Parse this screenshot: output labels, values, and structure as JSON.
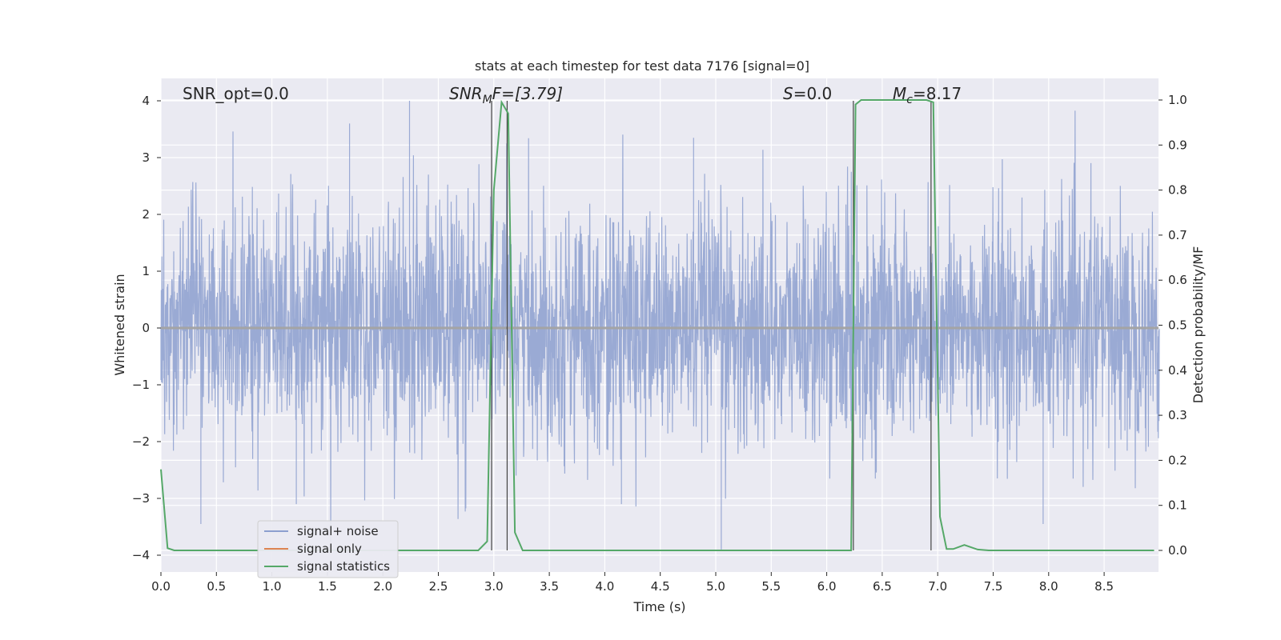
{
  "chart_data": {
    "type": "line",
    "title": "stats at each timestep for test data 7176 [signal=0]",
    "xlabel": "Time (s)",
    "ylabel": "Whitened strain",
    "y2label": "Detection probability/MF",
    "xlim": [
      0,
      9
    ],
    "ylim": [
      -4.25,
      4.4
    ],
    "y2lim": [
      -0.048,
      1.048
    ],
    "xticks": [
      "0.0",
      "0.5",
      "1.0",
      "1.5",
      "2.0",
      "2.5",
      "3.0",
      "3.5",
      "4.0",
      "4.5",
      "5.0",
      "5.5",
      "6.0",
      "6.5",
      "7.0",
      "7.5",
      "8.0",
      "8.5"
    ],
    "yticks": [
      "−4",
      "−3",
      "−2",
      "−1",
      "0",
      "1",
      "2",
      "3",
      "4"
    ],
    "y2ticks": [
      "0.0",
      "0.1",
      "0.2",
      "0.3",
      "0.4",
      "0.5",
      "0.6",
      "0.7",
      "0.8",
      "0.9",
      "1.0"
    ],
    "grid": true,
    "legend": {
      "position": "lower-left",
      "entries": [
        {
          "label": "signal+ noise",
          "color": "#8c9fcf"
        },
        {
          "label": "signal only",
          "color": "#dd8452"
        },
        {
          "label": "signal statistics",
          "color": "#55a868"
        }
      ]
    },
    "annotations": {
      "snr_opt": "SNR_opt=0.0",
      "snr_mf_main": "SNR",
      "snr_mf_sub": "M",
      "snr_mf_rest": "F=[3.79]",
      "s_italic": "S",
      "s_rest": "=0.0",
      "mc_main": "M",
      "mc_sub": "c",
      "mc_rest": "=8.17"
    },
    "series": [
      {
        "name": "signal+ noise",
        "color": "#8c9fcf",
        "description_range": [
          -3.9,
          4.0
        ],
        "spikes": [
          {
            "x": 2.24,
            "y": 4.0
          },
          {
            "x": 1.7,
            "y": 3.6
          },
          {
            "x": 4.8,
            "y": 3.35
          },
          {
            "x": 5.05,
            "y": -3.9
          },
          {
            "x": 7.95,
            "y": -3.45
          },
          {
            "x": 0.36,
            "y": -3.45
          },
          {
            "x": 4.15,
            "y": -3.1
          },
          {
            "x": 1.22,
            "y": -3.1
          }
        ]
      },
      {
        "name": "signal only",
        "color": "#dd8452",
        "x": [
          0,
          9
        ],
        "y": [
          0,
          0
        ]
      },
      {
        "name": "signal statistics",
        "color": "#55a868",
        "x": [
          0.0,
          0.06,
          0.12,
          2.86,
          2.94,
          3.0,
          3.07,
          3.13,
          3.19,
          3.26,
          6.22,
          6.26,
          6.31,
          6.38,
          6.9,
          6.96,
          7.02,
          7.08,
          7.14,
          7.24,
          7.36,
          7.46,
          8.95
        ],
        "y": [
          0.18,
          0.005,
          0.0,
          0.0,
          0.02,
          0.8,
          0.995,
          0.97,
          0.04,
          0.0,
          0.0,
          0.99,
          1.0,
          1.0,
          1.0,
          0.995,
          0.075,
          0.003,
          0.003,
          0.012,
          0.002,
          0.0,
          0.0
        ]
      }
    ],
    "vlines_x": [
      2.98,
      3.12,
      6.24,
      6.94
    ]
  }
}
